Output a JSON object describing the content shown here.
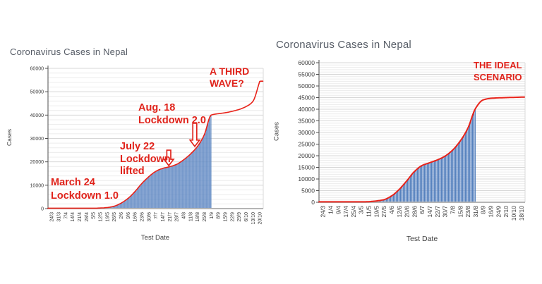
{
  "page": {
    "background": "#ffffff"
  },
  "chart_data": [
    {
      "type": "bar",
      "overlay": "line",
      "title": "Coronavirus Cases in Nepal",
      "xlabel": "Test Date",
      "ylabel": "Cases",
      "ylim": [
        0,
        60000
      ],
      "y_tick_step": 10000,
      "y_minor_gridline_step": 2000,
      "grid": true,
      "legend": false,
      "categories": [
        "24/3",
        "31/3",
        "7/4",
        "14/4",
        "21/4",
        "28/4",
        "5/5",
        "12/5",
        "19/5",
        "26/5",
        "2/6",
        "9/6",
        "16/6",
        "23/6",
        "30/6",
        "7/7",
        "14/7",
        "21/7",
        "28/7",
        "4/8",
        "11/8",
        "18/8",
        "25/8",
        "1/9",
        "8/9",
        "15/9",
        "22/9",
        "29/9",
        "6/10",
        "13/10",
        "20/10"
      ],
      "values": [
        0,
        50,
        50,
        50,
        100,
        100,
        150,
        250,
        450,
        1000,
        2300,
        4300,
        7200,
        10700,
        13600,
        15900,
        17200,
        17900,
        18900,
        20800,
        23300,
        26500,
        31500,
        40000,
        40600,
        41000,
        41600,
        42400,
        43600,
        45800,
        54500
      ],
      "bars_through_category": "1/9",
      "bar_end_index": 23,
      "annotations": [
        {
          "id": "lockdown-1",
          "lines": [
            "March 24",
            "Lockdown 1.0"
          ]
        },
        {
          "id": "lockdown-lifted",
          "lines": [
            "July 22",
            "Lockdown",
            "lifted"
          ]
        },
        {
          "id": "lockdown-2",
          "lines": [
            "Aug. 18",
            "Lockdown 2.0"
          ]
        },
        {
          "id": "third-wave",
          "lines": [
            "A THIRD",
            "WAVE?"
          ]
        }
      ],
      "arrow_markers": [
        {
          "points_between": "14/7 and 21/7",
          "x_index": 16.9,
          "y_from": 25000,
          "y_to": 18400
        },
        {
          "points_between": "11/8 and 18/8",
          "x_index": 20.64,
          "y_from": 36500,
          "y_to": 26600
        }
      ],
      "colors": {
        "bars": "#4f7cba",
        "bar_area": "#8fadda",
        "line": "#e8231a",
        "annotation": "#e0231b"
      }
    },
    {
      "type": "bar",
      "overlay": "line",
      "title": "Coronavirus Cases in Nepal",
      "xlabel": "Test Date",
      "ylabel": "Cases",
      "ylim": [
        0,
        60000
      ],
      "y_tick_step": 5000,
      "y_minor_gridline_step": 1000,
      "grid": true,
      "legend": false,
      "categories": [
        "24/3",
        "1/4",
        "9/4",
        "17/4",
        "25/4",
        "3/5",
        "11/5",
        "19/5",
        "27/5",
        "4/6",
        "12/6",
        "20/6",
        "28/6",
        "6/7",
        "14/7",
        "22/7",
        "30/7",
        "7/8",
        "15/8",
        "23/8",
        "31/8",
        "8/9",
        "16/9",
        "24/9",
        "2/10",
        "10/10",
        "18/10"
      ],
      "values": [
        0,
        30,
        30,
        50,
        80,
        120,
        250,
        550,
        1100,
        2700,
        5500,
        9200,
        13200,
        15800,
        17000,
        18200,
        19800,
        22400,
        26300,
        31800,
        40300,
        44000,
        44700,
        44900,
        45000,
        45100,
        45200
      ],
      "bars_through_category": "31/8",
      "bar_end_index": 20,
      "annotations": [
        {
          "id": "ideal-scenario",
          "lines": [
            "THE IDEAL",
            "SCENARIO"
          ]
        }
      ],
      "arrow_markers": [],
      "colors": {
        "bars": "#4f7cba",
        "bar_area": "#8fadda",
        "line": "#e8231a",
        "annotation": "#e0231b"
      }
    }
  ]
}
